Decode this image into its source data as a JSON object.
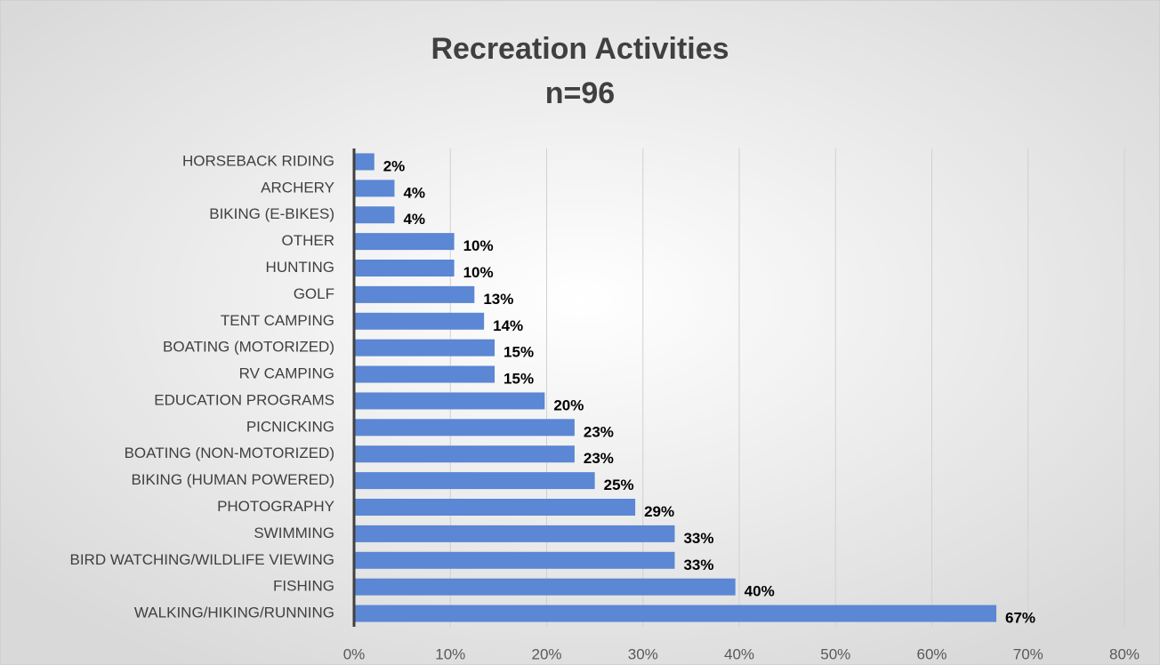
{
  "chart_data": {
    "type": "bar",
    "orientation": "horizontal",
    "title": "Recreation Activities",
    "subtitle": "n=96",
    "categories": [
      "HORSEBACK RIDING",
      "ARCHERY",
      "BIKING (E-BIKES)",
      "OTHER",
      "HUNTING",
      "GOLF",
      "TENT CAMPING",
      "BOATING (MOTORIZED)",
      "RV CAMPING",
      "EDUCATION PROGRAMS",
      "PICNICKING",
      "BOATING (NON-MOTORIZED)",
      "BIKING (HUMAN POWERED)",
      "PHOTOGRAPHY",
      "SWIMMING",
      "BIRD WATCHING/WILDLIFE VIEWING",
      "FISHING",
      "WALKING/HIKING/RUNNING"
    ],
    "values": [
      2.1,
      4.2,
      4.2,
      10.4,
      10.4,
      12.5,
      13.5,
      14.6,
      14.6,
      19.8,
      22.9,
      22.9,
      25,
      29.2,
      33.3,
      33.3,
      39.6,
      66.7
    ],
    "value_labels": [
      "2%",
      "4%",
      "4%",
      "10%",
      "10%",
      "13%",
      "14%",
      "15%",
      "15%",
      "20%",
      "23%",
      "23%",
      "25%",
      "29%",
      "33%",
      "33%",
      "40%",
      "67%"
    ],
    "color": "#5b87d4",
    "xlim": [
      0,
      80
    ],
    "xticks": [
      {
        "value": 0,
        "label": "0%"
      },
      {
        "value": 10,
        "label": "10%"
      },
      {
        "value": 20,
        "label": "20%"
      },
      {
        "value": 30,
        "label": "30%"
      },
      {
        "value": 40,
        "label": "40%"
      },
      {
        "value": 50,
        "label": "50%"
      },
      {
        "value": 60,
        "label": "60%"
      },
      {
        "value": 70,
        "label": "70%"
      },
      {
        "value": 80,
        "label": "80%"
      }
    ],
    "grid": true
  }
}
